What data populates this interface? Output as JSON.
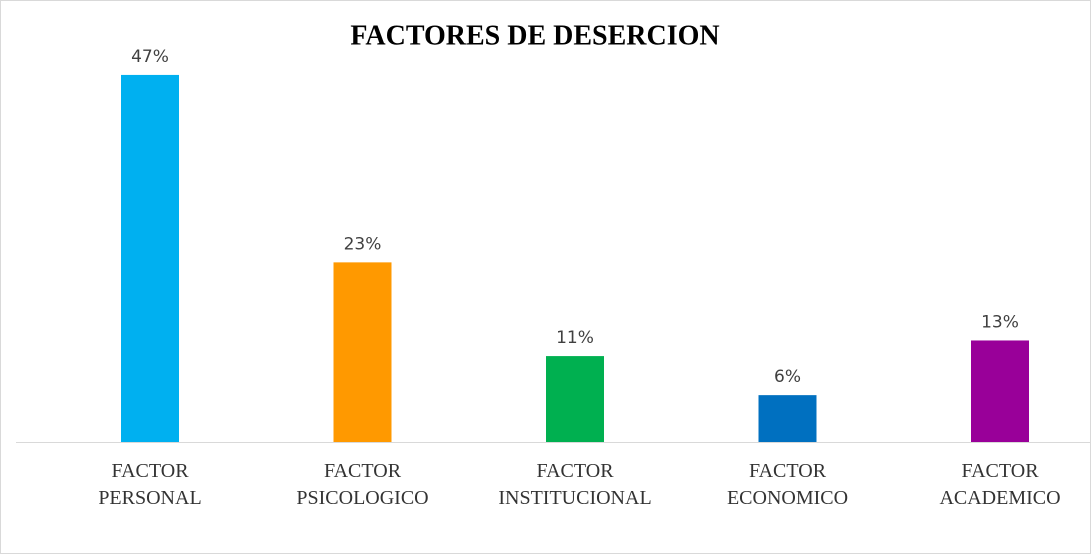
{
  "chart_data": {
    "type": "bar",
    "title": "FACTORES DE DESERCION",
    "categories": [
      "FACTOR PERSONAL",
      "FACTOR PSICOLOGICO",
      "FACTOR INSTITUCIONAL",
      "FACTOR ECONOMICO",
      "FACTOR ACADEMICO"
    ],
    "values": [
      47,
      23,
      11,
      6,
      13
    ],
    "value_labels": [
      "47%",
      "23%",
      "11%",
      "6%",
      "13%"
    ],
    "colors": [
      "#00b0f0",
      "#ff9900",
      "#00b050",
      "#0070c0",
      "#990099"
    ]
  }
}
